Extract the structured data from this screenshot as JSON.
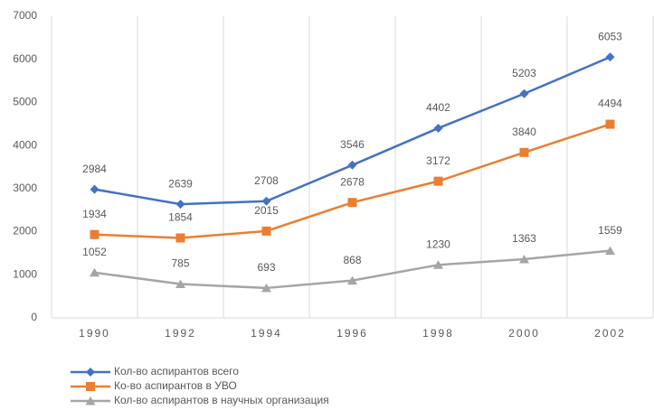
{
  "chart_data": {
    "type": "line",
    "categories": [
      "1990",
      "1992",
      "1994",
      "1996",
      "1998",
      "2000",
      "2002"
    ],
    "series": [
      {
        "name": "Кол-во аспирантов всего",
        "color": "#4472c4",
        "marker": "diamond",
        "values": [
          2984,
          2639,
          2708,
          3546,
          4402,
          5203,
          6053
        ]
      },
      {
        "name": "Ко-во аспирантов в УВО",
        "color": "#ed7d31",
        "marker": "square",
        "values": [
          1934,
          1854,
          2015,
          2678,
          3172,
          3840,
          4494
        ]
      },
      {
        "name": "Кол-во аспирантов в научных организация",
        "color": "#a5a5a5",
        "marker": "triangle",
        "values": [
          1052,
          785,
          693,
          868,
          1230,
          1363,
          1559
        ]
      }
    ],
    "ylim": [
      0,
      7000
    ],
    "yticks": [
      0,
      1000,
      2000,
      3000,
      4000,
      5000,
      6000,
      7000
    ],
    "grid": true,
    "legend": "bottom-left"
  }
}
